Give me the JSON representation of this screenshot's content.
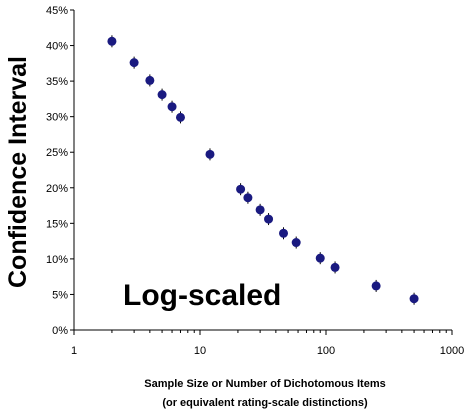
{
  "chart_data": {
    "type": "scatter",
    "x_scale": "log",
    "xlim": [
      1,
      1000
    ],
    "ylim": [
      0,
      45
    ],
    "x_ticks": [
      "1",
      "10",
      "100",
      "1000"
    ],
    "y_ticks": [
      "0%",
      "5%",
      "10%",
      "15%",
      "20%",
      "25%",
      "30%",
      "35%",
      "40%",
      "45%"
    ],
    "ylabel": "Confidence Interval",
    "xlabel_line1": "Sample Size or Number of Dichotomous Items",
    "xlabel_line2": "(or equivalent rating-scale distinctions)",
    "annotation": "Log-scaled",
    "grid": false,
    "marker_color": "#1a1a80",
    "points": [
      {
        "x": 2,
        "y": 40.6
      },
      {
        "x": 3,
        "y": 37.6
      },
      {
        "x": 4,
        "y": 35.1
      },
      {
        "x": 5,
        "y": 33.1
      },
      {
        "x": 6,
        "y": 31.4
      },
      {
        "x": 7,
        "y": 29.9
      },
      {
        "x": 12,
        "y": 24.7
      },
      {
        "x": 21,
        "y": 19.8
      },
      {
        "x": 24,
        "y": 18.6
      },
      {
        "x": 30,
        "y": 16.9
      },
      {
        "x": 35,
        "y": 15.6
      },
      {
        "x": 46,
        "y": 13.6
      },
      {
        "x": 58,
        "y": 12.3
      },
      {
        "x": 90,
        "y": 10.1
      },
      {
        "x": 118,
        "y": 8.8
      },
      {
        "x": 250,
        "y": 6.2
      },
      {
        "x": 500,
        "y": 4.4
      }
    ]
  }
}
